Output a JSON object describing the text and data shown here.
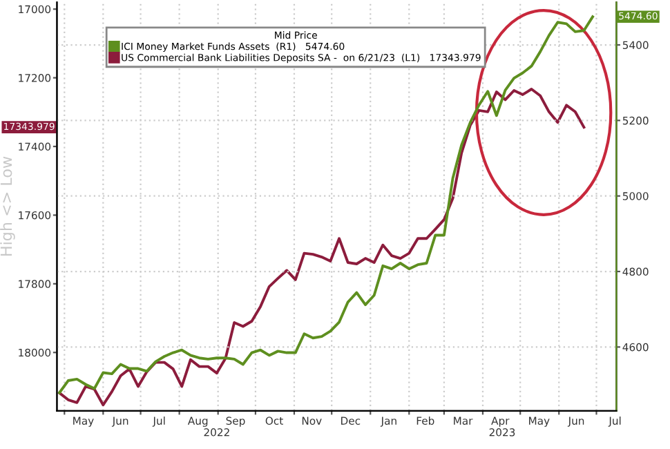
{
  "chart_data": {
    "type": "line",
    "legend_title": "Mid Price",
    "ylabel": "High <> Low",
    "x": [
      "2022-04-27",
      "2022-05-04",
      "2022-05-11",
      "2022-05-18",
      "2022-05-25",
      "2022-06-01",
      "2022-06-08",
      "2022-06-15",
      "2022-06-22",
      "2022-06-29",
      "2022-07-06",
      "2022-07-13",
      "2022-07-20",
      "2022-07-27",
      "2022-08-03",
      "2022-08-10",
      "2022-08-17",
      "2022-08-24",
      "2022-08-31",
      "2022-09-07",
      "2022-09-14",
      "2022-09-21",
      "2022-09-28",
      "2022-10-05",
      "2022-10-12",
      "2022-10-19",
      "2022-10-26",
      "2022-11-02",
      "2022-11-09",
      "2022-11-16",
      "2022-11-23",
      "2022-11-30",
      "2022-12-07",
      "2022-12-14",
      "2022-12-21",
      "2022-12-28",
      "2023-01-04",
      "2023-01-11",
      "2023-01-18",
      "2023-01-25",
      "2023-02-01",
      "2023-02-08",
      "2023-02-15",
      "2023-02-22",
      "2023-03-01",
      "2023-03-08",
      "2023-03-15",
      "2023-03-22",
      "2023-03-29",
      "2023-04-05",
      "2023-04-12",
      "2023-04-19",
      "2023-04-26",
      "2023-05-03",
      "2023-05-10",
      "2023-05-17",
      "2023-05-24",
      "2023-05-31",
      "2023-06-07",
      "2023-06-14",
      "2023-06-21",
      "2023-06-28"
    ],
    "series": [
      {
        "name": "ICI Money Market Funds Assets  (R1)   5474.60",
        "color": "#5e8f1f",
        "axis": "y2",
        "values": [
          4479,
          4511,
          4515,
          4501,
          4490,
          4532,
          4529,
          4554,
          4543,
          4543,
          4536,
          4561,
          4575,
          4585,
          4592,
          4578,
          4571,
          4568,
          4571,
          4571,
          4568,
          4554,
          4585,
          4592,
          4578,
          4589,
          4585,
          4585,
          4635,
          4624,
          4628,
          4642,
          4666,
          4719,
          4744,
          4712,
          4737,
          4815,
          4807,
          4822,
          4807,
          4818,
          4822,
          4896,
          4896,
          5047,
          5135,
          5195,
          5241,
          5277,
          5213,
          5280,
          5312,
          5326,
          5344,
          5382,
          5425,
          5460,
          5456,
          5435,
          5438,
          5474.6
        ]
      },
      {
        "name": "US Commercial Bank Liabilities Deposits SA -  on 6/21/23  (L1)   17343.979",
        "color": "#8c1c3c",
        "values": [
          18118,
          18138,
          18146,
          18099,
          18107,
          18153,
          18114,
          18068,
          18048,
          18099,
          18056,
          18029,
          18029,
          18048,
          18099,
          18021,
          18041,
          18041,
          18060,
          18017,
          17913,
          17924,
          17909,
          17866,
          17808,
          17784,
          17761,
          17788,
          17711,
          17714,
          17722,
          17734,
          17668,
          17738,
          17742,
          17726,
          17738,
          17687,
          17718,
          17726,
          17711,
          17668,
          17668,
          17641,
          17613,
          17551,
          17419,
          17338,
          17295,
          17299,
          17241,
          17264,
          17237,
          17249,
          17233,
          17252,
          17299,
          17330,
          17280,
          17299,
          17343.979,
          null
        ]
      }
    ],
    "xlim": [
      "2022-04-25",
      "2023-07-17"
    ],
    "xticks": [
      {
        "value": "2022-05-01",
        "label": null
      },
      {
        "value": "2022-05-16",
        "label": "May"
      },
      {
        "value": "2022-06-01",
        "label": null
      },
      {
        "value": "2022-06-15",
        "label": "Jun"
      },
      {
        "value": "2022-07-01",
        "label": null
      },
      {
        "value": "2022-07-16",
        "label": "Jul"
      },
      {
        "value": "2022-08-01",
        "label": null
      },
      {
        "value": "2022-08-16",
        "label": "Aug"
      },
      {
        "value": "2022-09-01",
        "label": null
      },
      {
        "value": "2022-09-15",
        "label": "Sep"
      },
      {
        "value": "2022-10-01",
        "label": null
      },
      {
        "value": "2022-10-16",
        "label": "Oct"
      },
      {
        "value": "2022-11-01",
        "label": null
      },
      {
        "value": "2022-11-15",
        "label": "Nov"
      },
      {
        "value": "2022-12-01",
        "label": null
      },
      {
        "value": "2022-12-16",
        "label": "Dec"
      },
      {
        "value": "2023-01-01",
        "label": null
      },
      {
        "value": "2023-01-16",
        "label": "Jan"
      },
      {
        "value": "2023-02-01",
        "label": null
      },
      {
        "value": "2023-02-14",
        "label": "Feb"
      },
      {
        "value": "2023-03-01",
        "label": null
      },
      {
        "value": "2023-03-16",
        "label": "Mar"
      },
      {
        "value": "2023-04-01",
        "label": null
      },
      {
        "value": "2023-04-15",
        "label": "Apr"
      },
      {
        "value": "2023-05-01",
        "label": null
      },
      {
        "value": "2023-05-16",
        "label": "May"
      },
      {
        "value": "2023-06-01",
        "label": null
      },
      {
        "value": "2023-06-15",
        "label": "Jun"
      },
      {
        "value": "2023-07-01",
        "label": null
      },
      {
        "value": "2023-07-16",
        "label": "Jul"
      }
    ],
    "ylim": [
      18170,
      16980
    ],
    "yticks": [
      17000,
      17200,
      17400,
      17600,
      17800,
      18000
    ],
    "y2lim": [
      4431,
      5513
    ],
    "y2ticks": [
      4600,
      4800,
      5000,
      5200,
      5400
    ],
    "annotations": [
      "2022",
      "2023",
      "17343.979",
      "5474.60"
    ],
    "grid": true,
    "legend": "top left"
  }
}
